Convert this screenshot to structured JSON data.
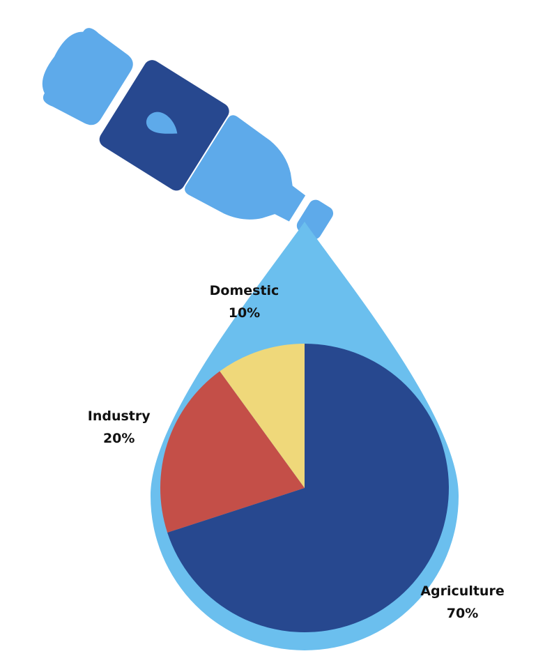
{
  "chart_data": {
    "type": "pie",
    "categories": [
      "Agriculture",
      "Industry",
      "Domestic"
    ],
    "values": [
      70,
      20,
      10
    ],
    "value_labels": [
      "70%",
      "20%",
      "10%"
    ],
    "colors": [
      "#27488f",
      "#c44f48",
      "#efd87a"
    ]
  }
}
